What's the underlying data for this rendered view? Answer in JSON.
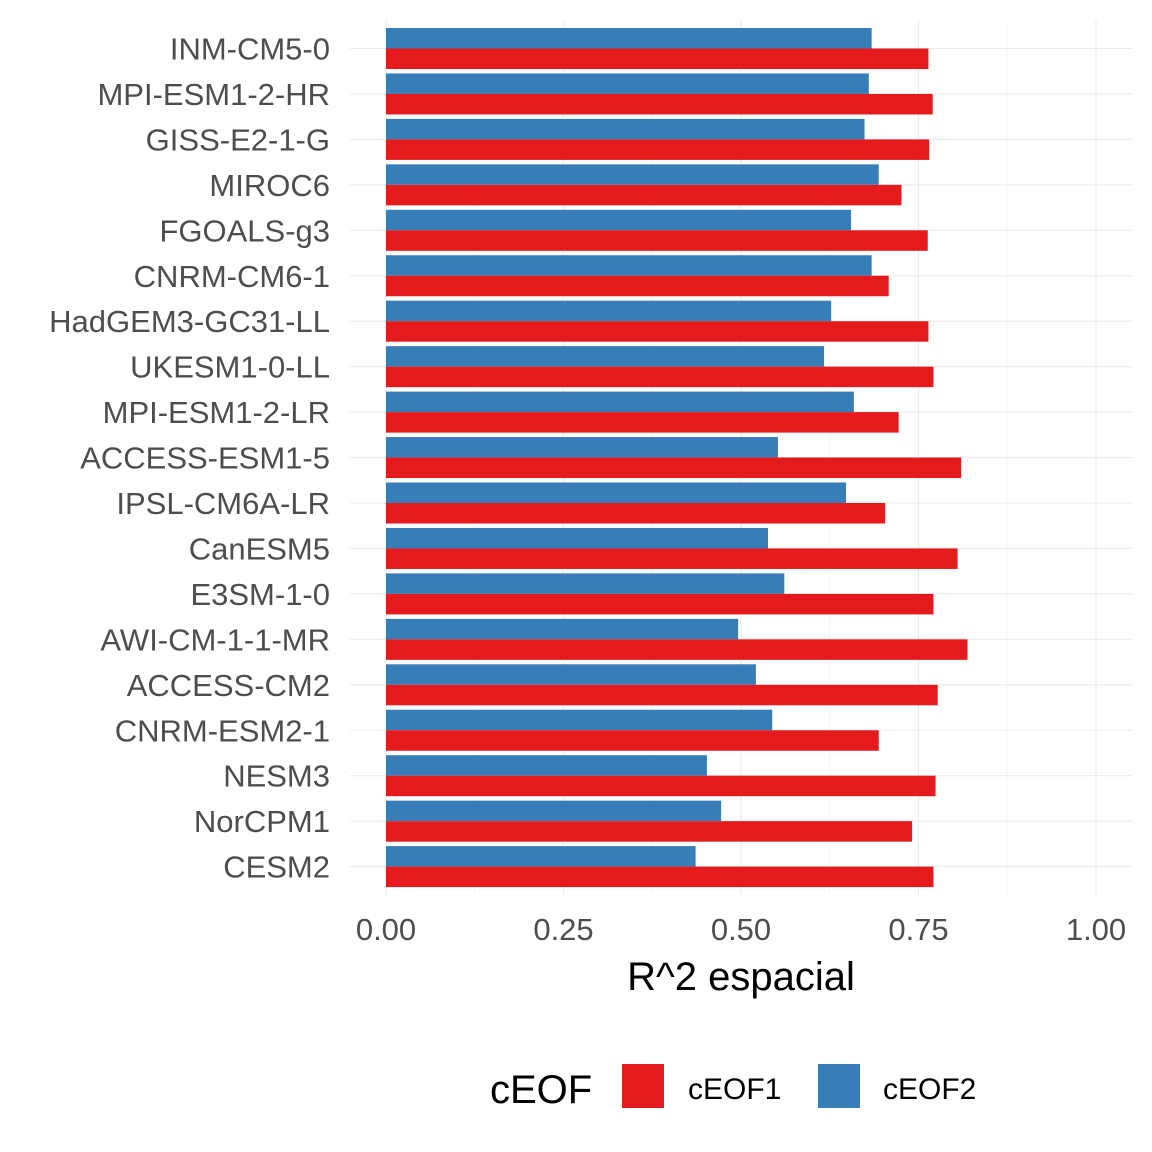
{
  "chart_data": {
    "type": "bar",
    "orientation": "horizontal",
    "title": "",
    "xlabel": "R^2 espacial",
    "ylabel": "",
    "xlim": [
      0,
      1.05
    ],
    "x_ticks": [
      "0.00",
      "0.25",
      "0.50",
      "0.75",
      "1.00"
    ],
    "x_tick_values": [
      0,
      0.25,
      0.5,
      0.75,
      1.0
    ],
    "grid": true,
    "legend_position": "bottom",
    "legend_title": "cEOF",
    "categories": [
      "INM-CM5-0",
      "MPI-ESM1-2-HR",
      "GISS-E2-1-G",
      "MIROC6",
      "FGOALS-g3",
      "CNRM-CM6-1",
      "HadGEM3-GC31-LL",
      "UKESM1-0-LL",
      "MPI-ESM1-2-LR",
      "ACCESS-ESM1-5",
      "IPSL-CM6A-LR",
      "CanESM5",
      "E3SM-1-0",
      "AWI-CM-1-1-MR",
      "ACCESS-CM2",
      "CNRM-ESM2-1",
      "NESM3",
      "NorCPM1",
      "CESM2"
    ],
    "series": [
      {
        "name": "cEOF1",
        "color": "#e41a1c",
        "values": [
          0.764,
          0.77,
          0.765,
          0.726,
          0.763,
          0.708,
          0.764,
          0.771,
          0.722,
          0.81,
          0.703,
          0.805,
          0.771,
          0.819,
          0.777,
          0.694,
          0.774,
          0.741,
          0.771
        ]
      },
      {
        "name": "cEOF2",
        "color": "#377eb8",
        "values": [
          0.684,
          0.68,
          0.674,
          0.694,
          0.655,
          0.684,
          0.627,
          0.617,
          0.659,
          0.552,
          0.648,
          0.538,
          0.561,
          0.496,
          0.521,
          0.544,
          0.452,
          0.472,
          0.436
        ]
      }
    ]
  }
}
